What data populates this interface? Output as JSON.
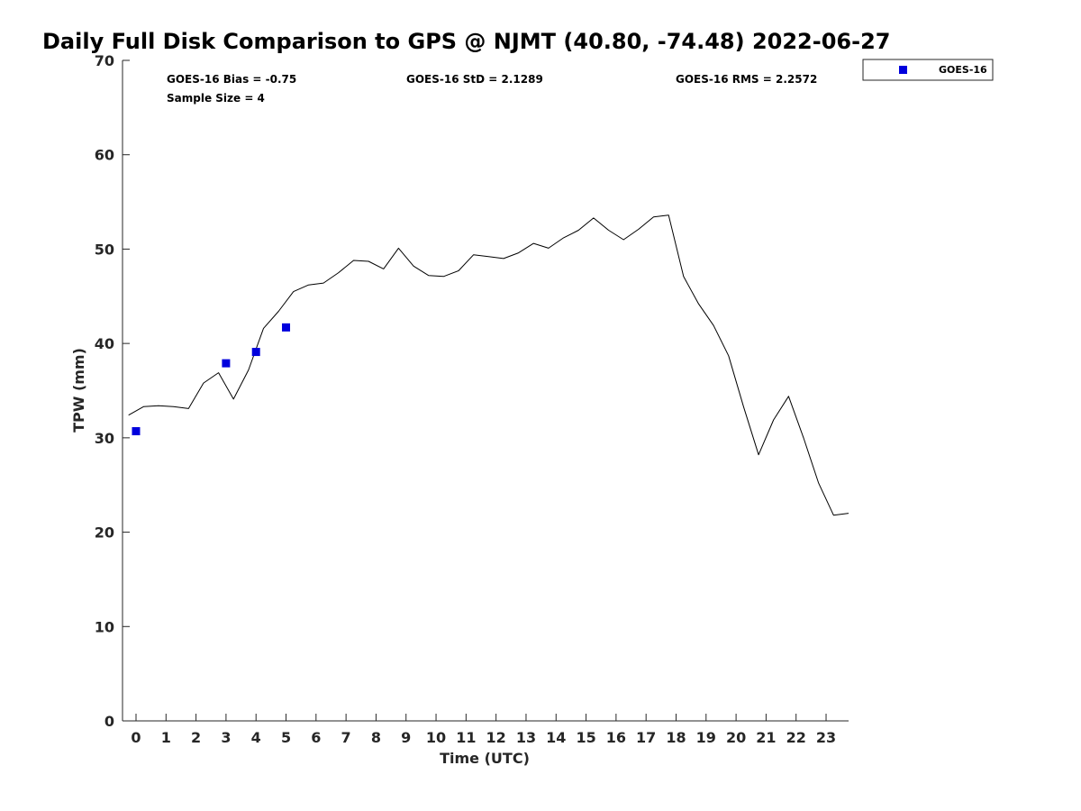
{
  "chart_data": {
    "type": "scatter",
    "title": "Daily Full Disk Comparison to GPS @ NJMT (40.80, -74.48) 2022-06-27",
    "xlabel": "Time (UTC)",
    "ylabel": "TPW (mm)",
    "xlim": [
      -0.45,
      23.75
    ],
    "ylim": [
      0,
      70
    ],
    "xticks": [
      "0",
      "1",
      "2",
      "3",
      "4",
      "5",
      "6",
      "7",
      "8",
      "9",
      "10",
      "11",
      "12",
      "13",
      "14",
      "15",
      "16",
      "17",
      "18",
      "19",
      "20",
      "21",
      "22",
      "23"
    ],
    "yticks": [
      "0",
      "10",
      "20",
      "30",
      "40",
      "50",
      "60",
      "70"
    ],
    "grid": false,
    "legend_position": "top-right",
    "stats": {
      "bias": "GOES-16 Bias = -0.75",
      "std": "GOES-16 StD = 2.1289",
      "rms": "GOES-16 RMS = 2.2572",
      "sample_size": "Sample Size = 4"
    },
    "series": [
      {
        "name": "GOES-16",
        "kind": "scatter",
        "color": "#0000dd",
        "marker": "square",
        "x": [
          0.0,
          3.0,
          4.0,
          5.0
        ],
        "y": [
          30.7,
          37.9,
          39.1,
          41.7
        ]
      },
      {
        "kind": "line",
        "color": "#000000",
        "x": [
          -0.25,
          0.25,
          0.75,
          1.25,
          1.75,
          2.25,
          2.75,
          3.25,
          3.75,
          4.25,
          4.75,
          5.25,
          5.75,
          6.25,
          6.75,
          7.25,
          7.75,
          8.25,
          8.75,
          9.25,
          9.75,
          10.25,
          10.75,
          11.25,
          11.75,
          12.25,
          12.75,
          13.25,
          13.75,
          14.25,
          14.75,
          15.25,
          15.75,
          16.25,
          16.75,
          17.25,
          17.75,
          18.25,
          18.75,
          19.25,
          19.75,
          20.25,
          20.75,
          21.25,
          21.75,
          22.25,
          22.75,
          23.25,
          23.75
        ],
        "y": [
          32.4,
          33.3,
          33.4,
          33.3,
          33.1,
          35.8,
          36.9,
          34.1,
          37.2,
          41.6,
          43.4,
          45.5,
          46.2,
          46.4,
          47.5,
          48.8,
          48.7,
          47.9,
          50.1,
          48.2,
          47.2,
          47.1,
          47.7,
          49.4,
          49.2,
          49.0,
          49.6,
          50.6,
          50.1,
          51.2,
          52.0,
          53.3,
          52.0,
          51.0,
          52.1,
          53.4,
          53.6,
          47.1,
          44.2,
          41.9,
          38.7,
          33.3,
          28.2,
          31.9,
          34.4,
          30.0,
          25.2,
          21.8,
          22.0
        ]
      }
    ]
  }
}
